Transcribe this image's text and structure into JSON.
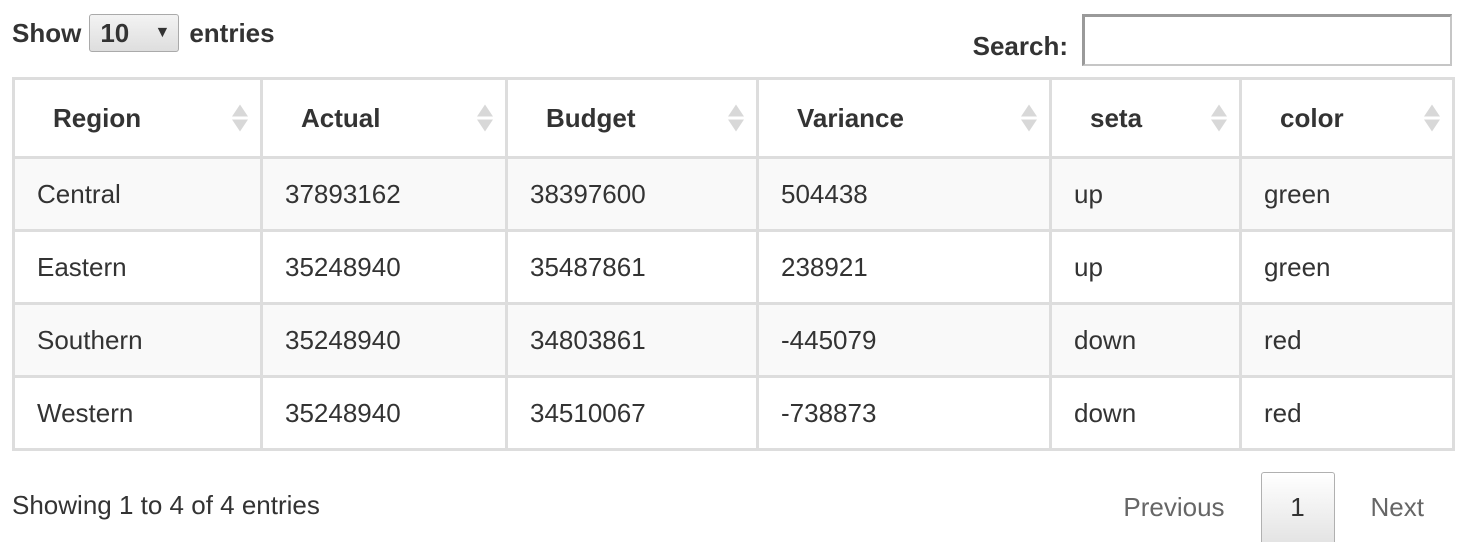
{
  "length": {
    "prefix": "Show",
    "value": "10",
    "arrow": "▼",
    "suffix": "entries"
  },
  "search": {
    "label": "Search:",
    "value": "",
    "placeholder": ""
  },
  "table": {
    "columns": [
      "Region",
      "Actual",
      "Budget",
      "Variance",
      "seta",
      "color"
    ],
    "rows": [
      [
        "Central",
        "37893162",
        "38397600",
        "504438",
        "up",
        "green"
      ],
      [
        "Eastern",
        "35248940",
        "35487861",
        "238921",
        "up",
        "green"
      ],
      [
        "Southern",
        "35248940",
        "34803861",
        "-445079",
        "down",
        "red"
      ],
      [
        "Western",
        "35248940",
        "34510067",
        "-738873",
        "down",
        "red"
      ]
    ]
  },
  "info": "Showing 1 to 4 of 4 entries",
  "pagination": {
    "previous": "Previous",
    "current": "1",
    "next": "Next"
  }
}
